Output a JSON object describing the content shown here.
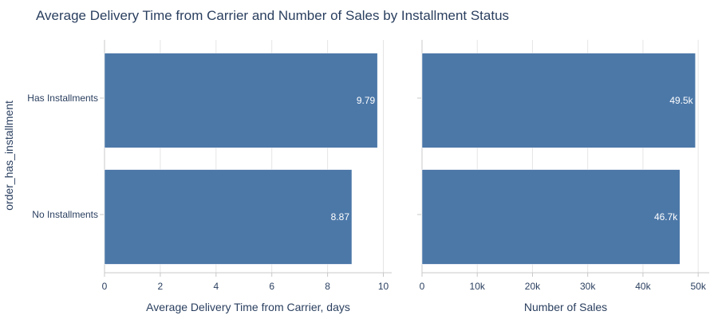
{
  "title": "Average Delivery Time from Carrier and Number of Sales by Installment Status",
  "y_axis_label": "order_has_installment",
  "colors": {
    "bar": "#4c78a8",
    "grid": "#e5e5e5",
    "axis": "#c8c8c8",
    "text": "#2a3f5f"
  },
  "chart_data": [
    {
      "type": "bar",
      "orientation": "horizontal",
      "categories": [
        "Has Installments",
        "No Installments"
      ],
      "values": [
        9.79,
        8.87
      ],
      "value_labels": [
        "9.79",
        "8.87"
      ],
      "xlabel": "Average Delivery Time from Carrier, days",
      "xlim": [
        0,
        10.3
      ],
      "xticks": [
        0,
        2,
        4,
        6,
        8,
        10
      ],
      "xtick_labels": [
        "0",
        "2",
        "4",
        "6",
        "8",
        "10"
      ],
      "grid": true
    },
    {
      "type": "bar",
      "orientation": "horizontal",
      "categories": [
        "Has Installments",
        "No Installments"
      ],
      "values": [
        49500,
        46700
      ],
      "value_labels": [
        "49.5k",
        "46.7k"
      ],
      "xlabel": "Number of Sales",
      "xlim": [
        0,
        52000
      ],
      "xticks": [
        0,
        10000,
        20000,
        30000,
        40000,
        50000
      ],
      "xtick_labels": [
        "0",
        "10k",
        "20k",
        "30k",
        "40k",
        "50k"
      ],
      "grid": true
    }
  ]
}
